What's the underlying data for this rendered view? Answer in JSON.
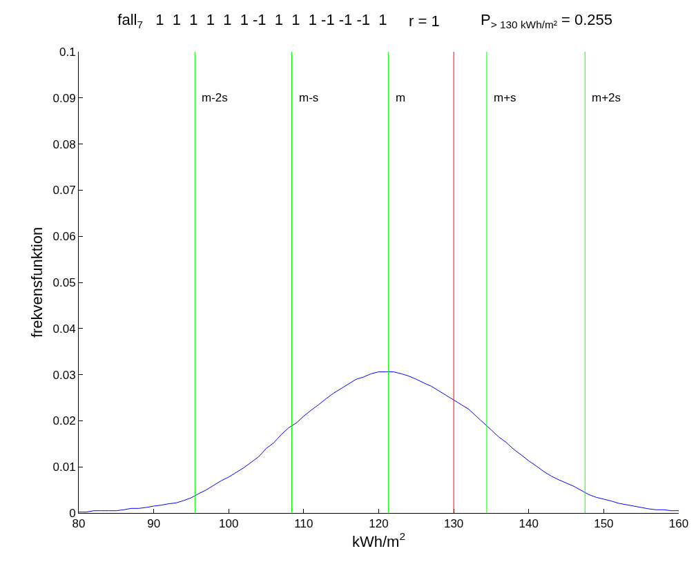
{
  "chart_data": {
    "type": "line",
    "title": "fall$_{7}$   1  1  1  1  1  1 -1  1  1  1 -1 -1 -1  1",
    "annotations": [
      "r = 1",
      "P$_{> 130 kWh/m²}$ = 0.255"
    ],
    "xlabel": "kWh/m$^{2}$",
    "ylabel": "frekvensfunktion",
    "x": [
      80,
      81,
      82,
      83,
      84,
      85,
      86,
      87,
      88,
      89,
      90,
      91,
      92,
      93,
      94,
      95,
      96,
      97,
      98,
      99,
      100,
      101,
      102,
      103,
      104,
      105,
      106,
      107,
      108,
      109,
      110,
      111,
      112,
      113,
      114,
      115,
      116,
      117,
      118,
      119,
      120,
      121,
      122,
      123,
      124,
      125,
      126,
      127,
      128,
      129,
      130,
      131,
      132,
      133,
      134,
      135,
      136,
      137,
      138,
      139,
      140,
      141,
      142,
      143,
      144,
      145,
      146,
      147,
      148,
      149,
      150,
      151,
      152,
      153,
      154,
      155,
      156,
      157,
      158,
      159,
      160
    ],
    "series": [
      {
        "color": "#0000ff",
        "values": [
          0.0002,
          0.0002,
          0.0005,
          0.0005,
          0.0005,
          0.0005,
          0.0007,
          0.001,
          0.001,
          0.0012,
          0.0015,
          0.0017,
          0.002,
          0.0022,
          0.0027,
          0.0033,
          0.0042,
          0.005,
          0.006,
          0.007,
          0.0078,
          0.0088,
          0.0098,
          0.011,
          0.0122,
          0.014,
          0.0152,
          0.017,
          0.0185,
          0.0195,
          0.021,
          0.0223,
          0.0235,
          0.0248,
          0.026,
          0.027,
          0.028,
          0.029,
          0.0295,
          0.0302,
          0.0306,
          0.0306,
          0.0306,
          0.0302,
          0.0297,
          0.029,
          0.0282,
          0.0275,
          0.0265,
          0.0255,
          0.0245,
          0.0235,
          0.0225,
          0.021,
          0.0195,
          0.018,
          0.0165,
          0.0153,
          0.0138,
          0.0126,
          0.0113,
          0.0102,
          0.009,
          0.008,
          0.0072,
          0.0065,
          0.0058,
          0.0049,
          0.004,
          0.0034,
          0.003,
          0.0026,
          0.0021,
          0.0018,
          0.0015,
          0.0012,
          0.0009,
          0.0007,
          0.0007,
          0.0005,
          0.0005
        ]
      }
    ],
    "xlim": [
      80,
      160
    ],
    "xticks": [
      80,
      90,
      100,
      110,
      120,
      130,
      140,
      150,
      160
    ],
    "ylim": [
      0,
      0.1
    ],
    "yticks": [
      0,
      0.01,
      0.02,
      0.03,
      0.04,
      0.05,
      0.06,
      0.07,
      0.08,
      0.09,
      0.1
    ],
    "ref_lines": [
      {
        "axis": "x",
        "value": 95.5,
        "label": "m-2s",
        "color": "#00ff00"
      },
      {
        "axis": "x",
        "value": 108.4,
        "label": "m-s",
        "color": "#00ff00"
      },
      {
        "axis": "x",
        "value": 121.3,
        "label": "m",
        "color": "#00ff00"
      },
      {
        "axis": "x",
        "value": 134.4,
        "label": "m+s",
        "color": "#00ff00"
      },
      {
        "axis": "x",
        "value": 147.5,
        "label": "m+2s",
        "color": "#00ff00"
      },
      {
        "axis": "x",
        "value": 130,
        "color": "#ff0000"
      }
    ],
    "line_style": "solid"
  }
}
